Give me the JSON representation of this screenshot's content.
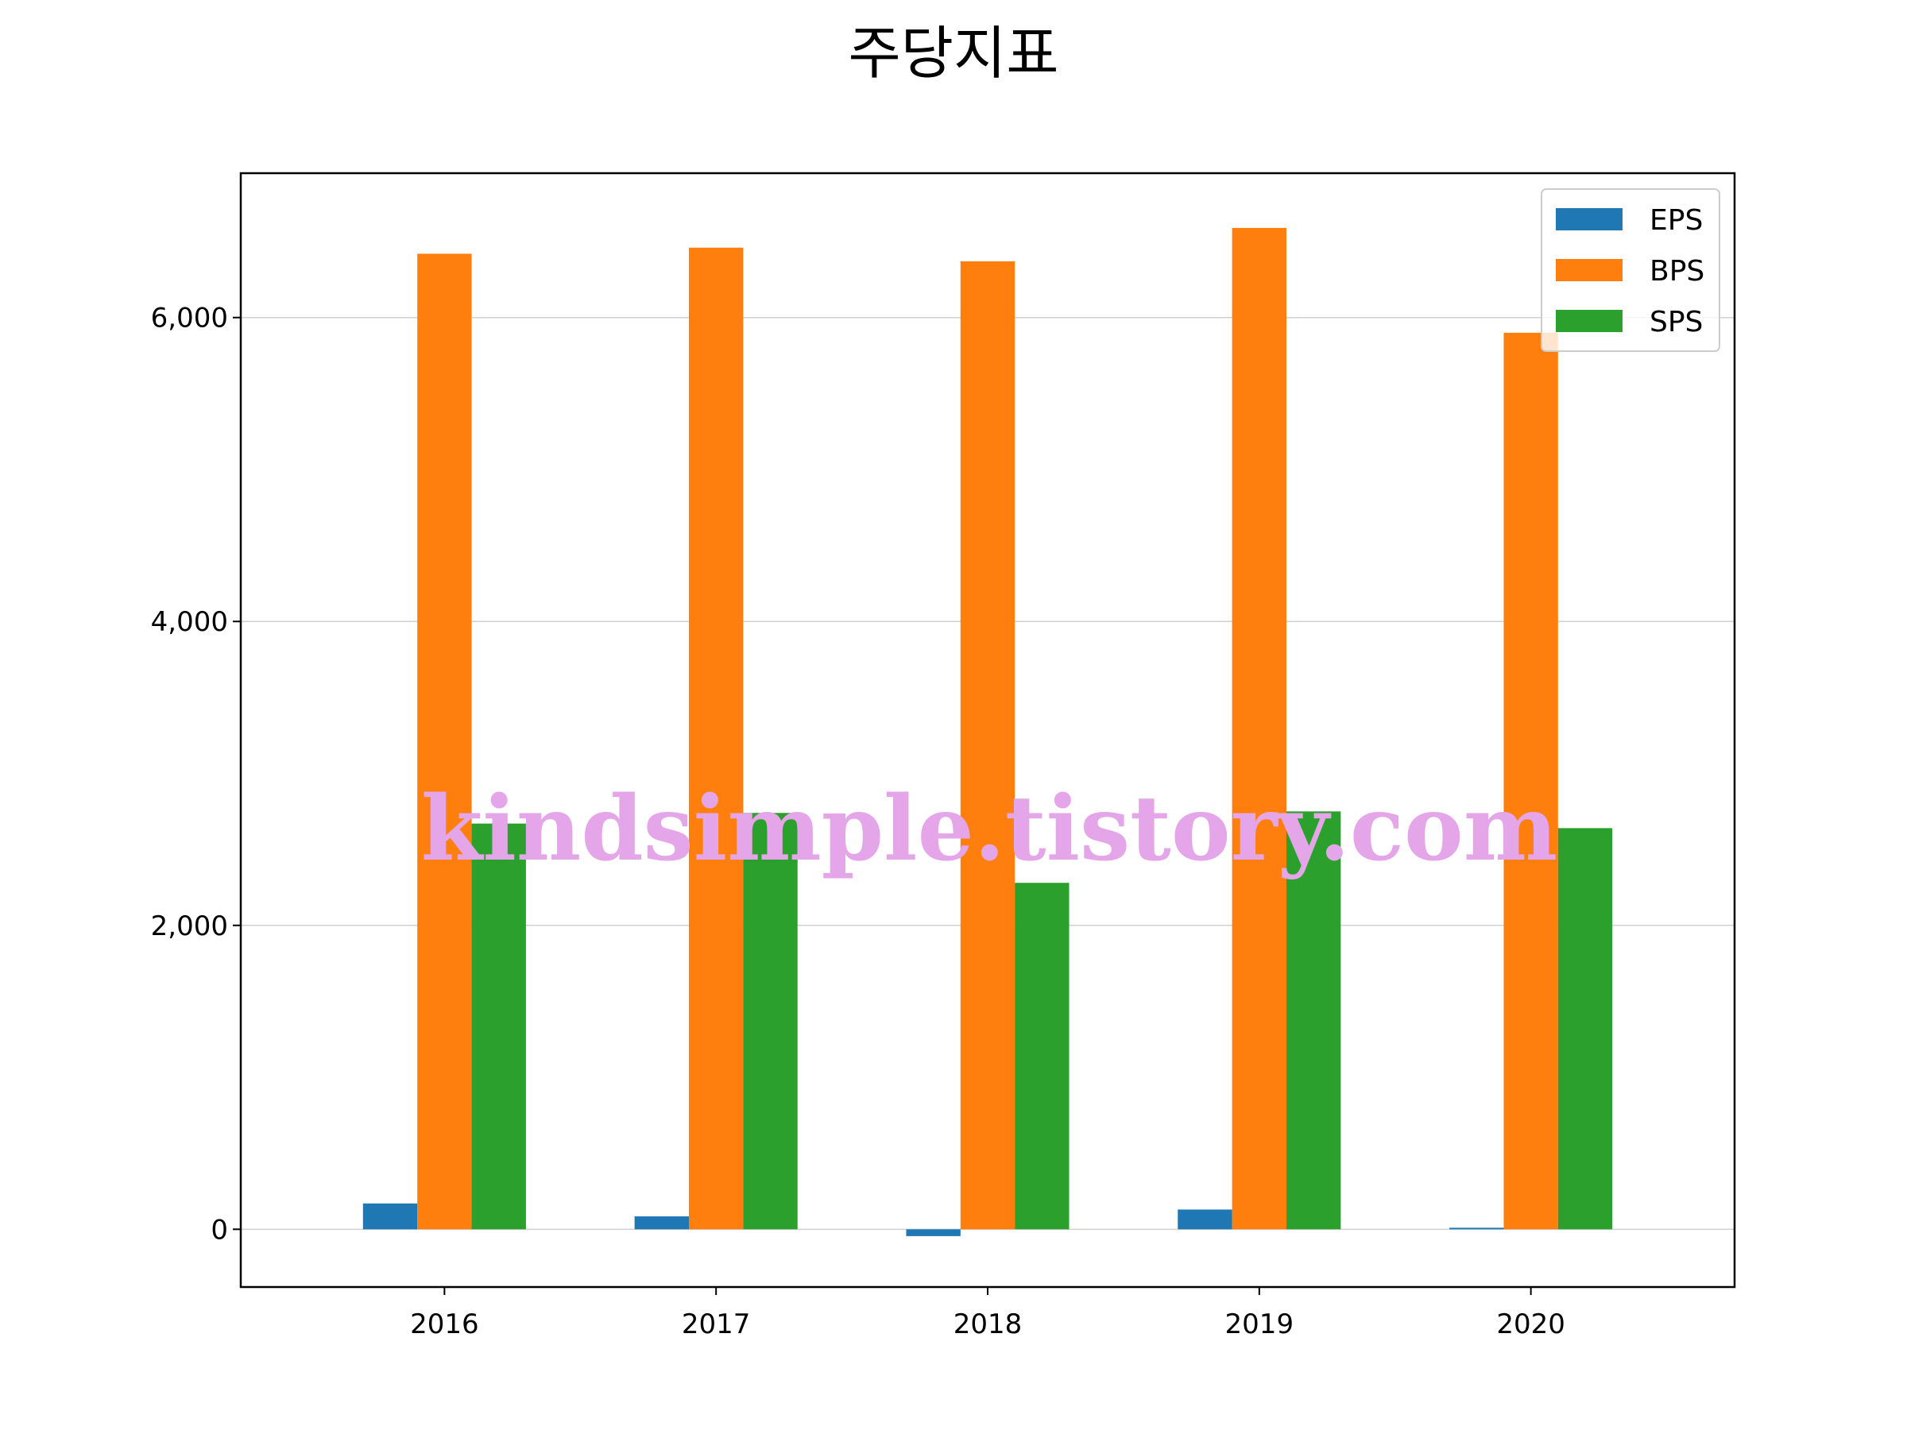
{
  "chart_data": {
    "type": "bar",
    "title": "주당지표",
    "xlabel": "",
    "ylabel": "",
    "categories": [
      "2016",
      "2017",
      "2018",
      "2019",
      "2020"
    ],
    "series": [
      {
        "name": "EPS",
        "color": "#1f77b4",
        "values": [
          170,
          85,
          -45,
          130,
          10
        ]
      },
      {
        "name": "BPS",
        "color": "#ff7f0e",
        "values": [
          6420,
          6460,
          6370,
          6590,
          5900
        ]
      },
      {
        "name": "SPS",
        "color": "#2ca02c",
        "values": [
          2670,
          2740,
          2280,
          2750,
          2640
        ]
      }
    ],
    "ylim": [
      -380,
      6950
    ],
    "yticks": [
      0,
      2000,
      4000,
      6000
    ],
    "ytick_labels": [
      "0",
      "2,000",
      "4,000",
      "6,000"
    ],
    "grid": "y",
    "legend_position": "top-right",
    "watermark": "kindsimple.tistory.com"
  }
}
